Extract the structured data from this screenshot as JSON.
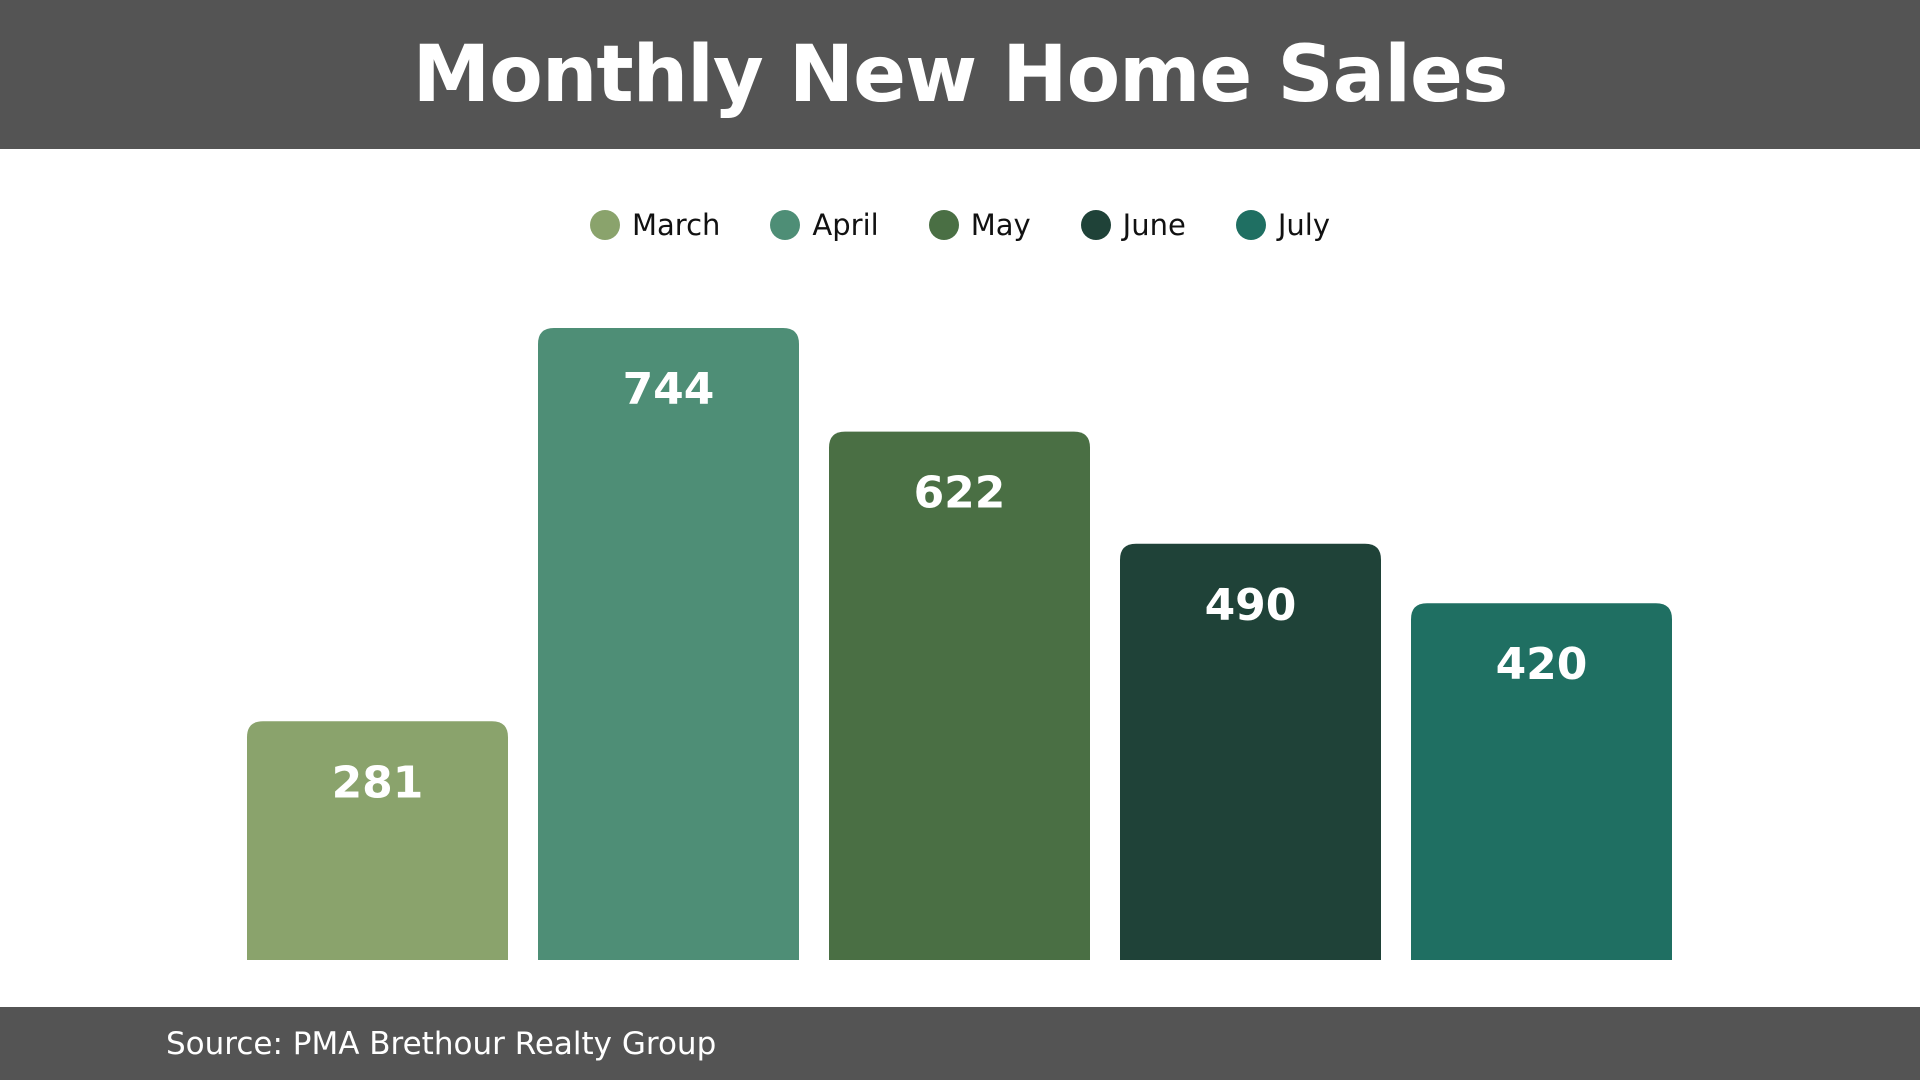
{
  "header": {
    "title": "Monthly New Home Sales"
  },
  "footer": {
    "source": "Source: PMA Brethour Realty Group"
  },
  "chart_data": {
    "type": "bar",
    "title": "Monthly New Home Sales",
    "categories": [
      "March",
      "April",
      "May",
      "June",
      "July"
    ],
    "values": [
      281,
      744,
      622,
      490,
      420
    ],
    "colors": [
      "#8aa36c",
      "#4e8e76",
      "#4a6f44",
      "#1f4238",
      "#1f6f62"
    ],
    "xlabel": "",
    "ylabel": "",
    "ylim": [
      0,
      744
    ],
    "grid": false,
    "legend": "top-center",
    "data_labels": true
  }
}
